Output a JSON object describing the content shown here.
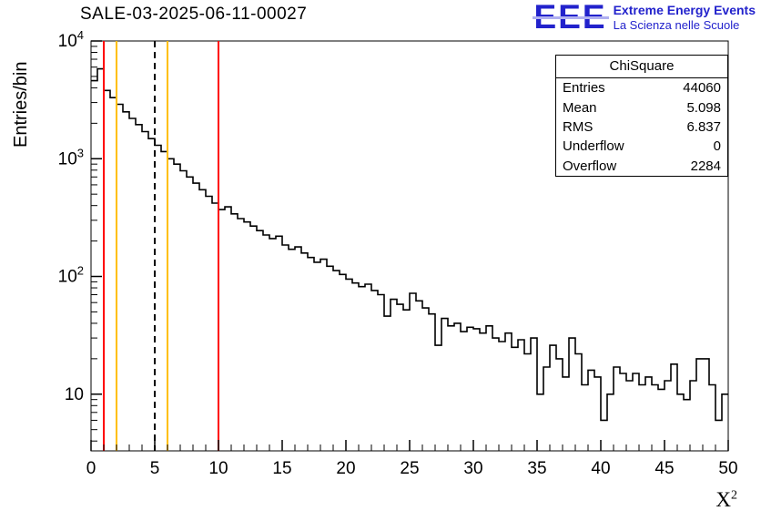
{
  "header": {
    "title": "SALE-03-2025-06-11-00027",
    "logo": {
      "acronym": "EEE",
      "line1": "Extreme Energy Events",
      "line2": "La Scienza nelle Scuole",
      "color": "#2222cc"
    }
  },
  "axes": {
    "ylabel": "Entries/bin",
    "xlabel_base": "X",
    "xlabel_exp": "2"
  },
  "stats_box": {
    "title": "ChiSquare",
    "rows": [
      {
        "label": "Entries",
        "value": "44060"
      },
      {
        "label": "Mean",
        "value": "5.098"
      },
      {
        "label": "RMS",
        "value": "6.837"
      },
      {
        "label": "Underflow",
        "value": "0"
      },
      {
        "label": "Overflow",
        "value": "2284"
      }
    ]
  },
  "chart_data": {
    "type": "line",
    "subtype": "step-histogram",
    "title": "SALE-03-2025-06-11-00027",
    "xlabel": "X^2",
    "ylabel": "Entries/bin",
    "yscale": "log",
    "xlim": [
      0,
      50
    ],
    "ylim": [
      3.3,
      10000
    ],
    "grid": false,
    "line_color": "#000000",
    "bin_start": 0,
    "bin_width": 0.5,
    "bin_counts": [
      4600,
      5800,
      3800,
      3300,
      2900,
      2500,
      2200,
      1950,
      1700,
      1480,
      1300,
      1150,
      1000,
      900,
      790,
      700,
      620,
      545,
      480,
      420,
      370,
      390,
      340,
      310,
      290,
      268,
      245,
      225,
      210,
      220,
      185,
      170,
      178,
      158,
      145,
      132,
      140,
      122,
      112,
      104,
      95,
      88,
      82,
      86,
      76,
      70,
      46,
      64,
      58,
      52,
      72,
      62,
      54,
      48,
      26,
      44,
      38,
      40,
      34,
      37,
      36,
      33,
      38,
      30,
      28,
      33,
      25,
      29,
      22,
      30,
      10,
      17,
      26,
      20,
      14,
      30,
      22,
      12,
      16,
      14,
      6,
      10,
      17,
      15,
      13,
      15,
      12,
      14,
      12,
      11,
      13,
      18,
      10,
      9,
      13,
      20,
      20,
      12,
      6,
      10
    ],
    "xticks": [
      0,
      5,
      10,
      15,
      20,
      25,
      30,
      35,
      40,
      45,
      50
    ],
    "yticks_decades": [
      1,
      2,
      3,
      4
    ],
    "marker_lines": [
      {
        "x": 1,
        "color": "#ff0000",
        "dash": false
      },
      {
        "x": 2,
        "color": "#ffbf00",
        "dash": false
      },
      {
        "x": 5,
        "color": "#000000",
        "dash": true
      },
      {
        "x": 6,
        "color": "#ffbf00",
        "dash": false
      },
      {
        "x": 10,
        "color": "#ff0000",
        "dash": false
      }
    ],
    "legend": null
  }
}
